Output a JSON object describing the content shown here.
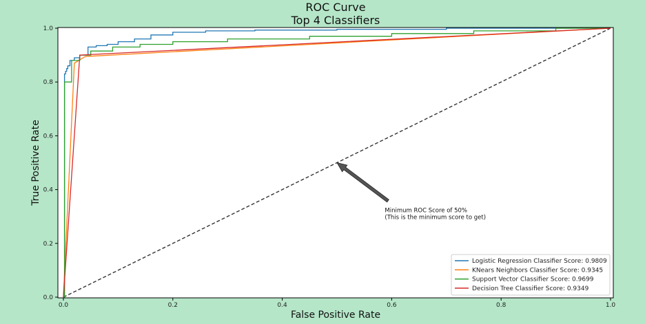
{
  "chart_data": {
    "type": "line",
    "title": "ROC Curve",
    "subtitle": "Top 4 Classifiers",
    "xlabel": "False Positive Rate",
    "ylabel": "True Positive Rate",
    "xlim": [
      0,
      1
    ],
    "ylim": [
      0,
      1
    ],
    "xticks": [
      "0.0",
      "0.2",
      "0.4",
      "0.6",
      "0.8",
      "1.0"
    ],
    "yticks": [
      "0.0",
      "0.2",
      "0.4",
      "0.6",
      "0.8",
      "1.0"
    ],
    "grid": false,
    "legend_position": "bottom-right",
    "series": [
      {
        "name": "Logistic Regression Classifier Score: 0.9809",
        "color": "#1f77b4",
        "x": [
          0,
          0.002,
          0.002,
          0.004,
          0.004,
          0.006,
          0.006,
          0.008,
          0.008,
          0.012,
          0.012,
          0.02,
          0.02,
          0.03,
          0.03,
          0.045,
          0.045,
          0.06,
          0.06,
          0.08,
          0.08,
          0.1,
          0.1,
          0.13,
          0.13,
          0.16,
          0.16,
          0.2,
          0.2,
          0.26,
          0.26,
          0.35,
          0.35,
          0.5,
          0.5,
          0.7,
          0.7,
          1.0
        ],
        "y": [
          0,
          0,
          0.83,
          0.83,
          0.84,
          0.84,
          0.85,
          0.85,
          0.86,
          0.86,
          0.88,
          0.88,
          0.89,
          0.89,
          0.9,
          0.9,
          0.93,
          0.93,
          0.935,
          0.935,
          0.94,
          0.94,
          0.95,
          0.95,
          0.96,
          0.96,
          0.975,
          0.975,
          0.985,
          0.985,
          0.99,
          0.99,
          0.993,
          0.993,
          0.996,
          0.996,
          1.0,
          1.0
        ]
      },
      {
        "name": "KNears Neighbors Classifier Score: 0.9345",
        "color": "#ff7f0e",
        "x": [
          0,
          0.02,
          0.04,
          1.0
        ],
        "y": [
          0,
          0.87,
          0.895,
          1.0
        ]
      },
      {
        "name": "Support Vector Classifier Score: 0.9699",
        "color": "#2ca02c",
        "x": [
          0,
          0.002,
          0.002,
          0.015,
          0.015,
          0.03,
          0.03,
          0.05,
          0.05,
          0.09,
          0.09,
          0.14,
          0.14,
          0.2,
          0.2,
          0.3,
          0.3,
          0.45,
          0.45,
          0.6,
          0.6,
          0.75,
          0.75,
          0.9,
          0.9,
          1.0
        ],
        "y": [
          0,
          0,
          0.8,
          0.8,
          0.88,
          0.88,
          0.9,
          0.9,
          0.915,
          0.915,
          0.93,
          0.93,
          0.94,
          0.94,
          0.95,
          0.95,
          0.96,
          0.96,
          0.97,
          0.97,
          0.98,
          0.98,
          0.99,
          0.99,
          1.0,
          1.0
        ]
      },
      {
        "name": "Decision Tree Classifier Score: 0.9349",
        "color": "#d62728",
        "x": [
          0,
          0.03,
          1.0
        ],
        "y": [
          0,
          0.9,
          1.0
        ]
      }
    ],
    "reference_line": {
      "x": [
        0,
        1
      ],
      "y": [
        0,
        1
      ],
      "color": "#333333",
      "style": "dashed"
    },
    "annotation": {
      "text_line1": "Minimum ROC Score of 50%",
      "text_line2": " (This is the minimum score to get)",
      "point": [
        0.5,
        0.5
      ],
      "text_at": [
        0.6,
        0.3
      ],
      "arrow_color": "#555555"
    }
  }
}
